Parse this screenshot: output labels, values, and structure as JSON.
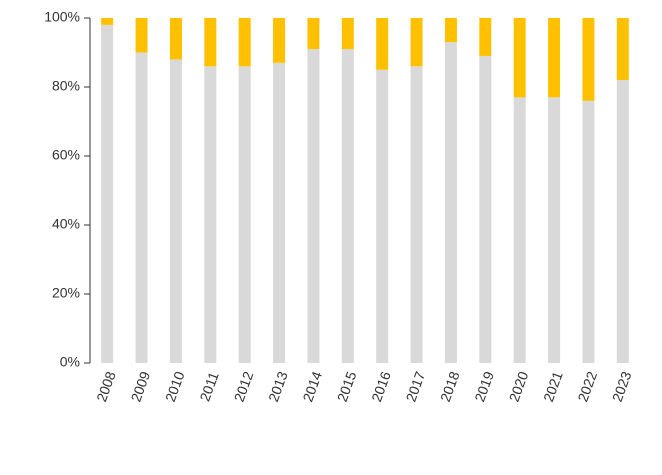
{
  "chart_data": {
    "type": "stacked_bar",
    "categories": [
      "2008",
      "2009",
      "2010",
      "2011",
      "2012",
      "2013",
      "2014",
      "2015",
      "2016",
      "2017",
      "2018",
      "2019",
      "2020",
      "2021",
      "2022",
      "2023"
    ],
    "series": [
      {
        "color": "#d9d9d9",
        "values": [
          98,
          90,
          88,
          86,
          86,
          87,
          91,
          91,
          85,
          86,
          93,
          89,
          77,
          77,
          76,
          82
        ]
      },
      {
        "color": "#ffc000",
        "values": [
          2,
          10,
          12,
          14,
          14,
          13,
          9,
          9,
          15,
          14,
          7,
          11,
          23,
          23,
          24,
          18
        ]
      }
    ],
    "ylim": [
      0,
      100
    ],
    "yticks": [
      {
        "value": 0,
        "label": "0%"
      },
      {
        "value": 20,
        "label": "20%"
      },
      {
        "value": 40,
        "label": "40%"
      },
      {
        "value": 60,
        "label": "60%"
      },
      {
        "value": 80,
        "label": "80%"
      },
      {
        "value": 100,
        "label": "100%"
      }
    ]
  }
}
